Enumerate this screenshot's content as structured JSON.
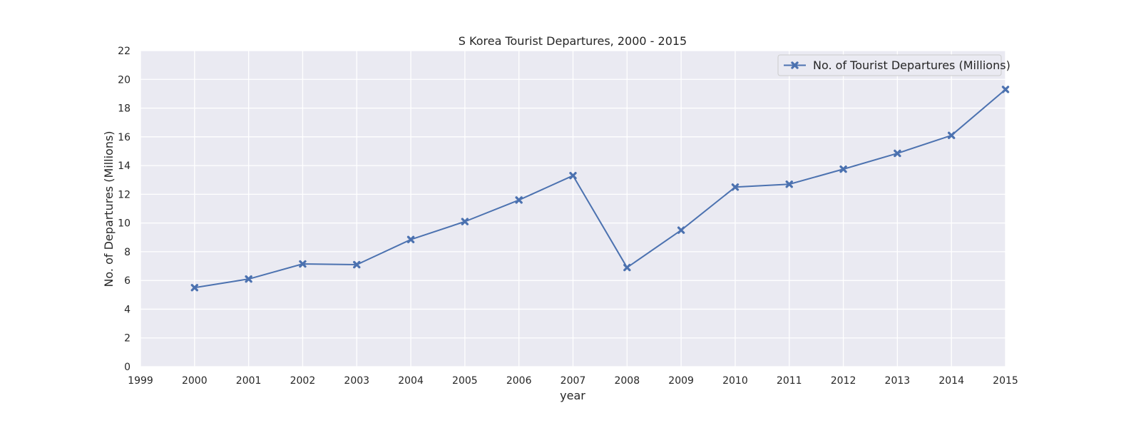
{
  "chart_data": {
    "type": "line",
    "title": "S Korea Tourist Departures, 2000 - 2015",
    "xlabel": "year",
    "ylabel": "No. of Departures (Millions)",
    "xlim": [
      1999,
      2015
    ],
    "ylim": [
      0,
      22
    ],
    "x_ticks": [
      "1999",
      "2000",
      "2001",
      "2002",
      "2003",
      "2004",
      "2005",
      "2006",
      "2007",
      "2008",
      "2009",
      "2010",
      "2011",
      "2012",
      "2013",
      "2014",
      "2015"
    ],
    "y_ticks": [
      "0",
      "2",
      "4",
      "6",
      "8",
      "10",
      "12",
      "14",
      "16",
      "18",
      "20",
      "22"
    ],
    "grid": true,
    "legend_position": "top-right",
    "background_color": "#eaeaf2",
    "grid_color": "#ffffff",
    "series": [
      {
        "name": "No. of Tourist Departures (Millions)",
        "color": "#4c72b0",
        "marker": "x",
        "x": [
          2000,
          2001,
          2002,
          2003,
          2004,
          2005,
          2006,
          2007,
          2008,
          2009,
          2010,
          2011,
          2012,
          2013,
          2014,
          2015
        ],
        "y": [
          5.5,
          6.1,
          7.15,
          7.1,
          8.85,
          10.1,
          11.6,
          13.3,
          6.9,
          9.5,
          12.5,
          12.7,
          13.75,
          14.85,
          16.1,
          19.3
        ]
      }
    ]
  }
}
